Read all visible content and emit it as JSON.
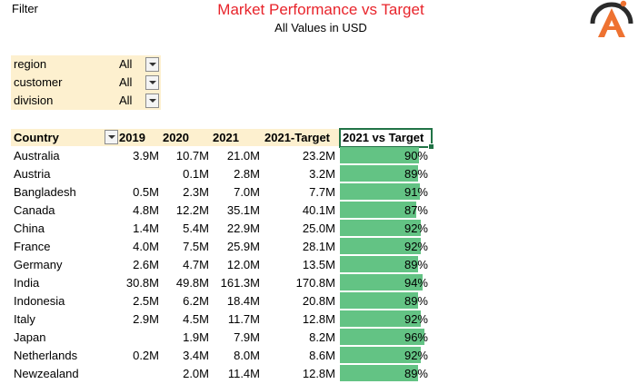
{
  "filter_label": "Filter",
  "title": "Market Performance vs Target",
  "subtitle": "All Values in USD",
  "slicers": [
    {
      "name": "region",
      "value": "All"
    },
    {
      "name": "customer",
      "value": "All"
    },
    {
      "name": "division",
      "value": "All"
    }
  ],
  "table": {
    "headers": [
      "Country",
      "2019",
      "2020",
      "2021",
      "2021-Target",
      "2021 vs Target"
    ],
    "rows": [
      {
        "country": "Australia",
        "y2019": "3.9M",
        "y2020": "10.7M",
        "y2021": "21.0M",
        "target": "23.2M",
        "pct": "90%",
        "pct_value": 0.9
      },
      {
        "country": "Austria",
        "y2019": "",
        "y2020": "0.1M",
        "y2021": "2.8M",
        "target": "3.2M",
        "pct": "89%",
        "pct_value": 0.89
      },
      {
        "country": "Bangladesh",
        "y2019": "0.5M",
        "y2020": "2.3M",
        "y2021": "7.0M",
        "target": "7.7M",
        "pct": "91%",
        "pct_value": 0.91
      },
      {
        "country": "Canada",
        "y2019": "4.8M",
        "y2020": "12.2M",
        "y2021": "35.1M",
        "target": "40.1M",
        "pct": "87%",
        "pct_value": 0.87
      },
      {
        "country": "China",
        "y2019": "1.4M",
        "y2020": "5.4M",
        "y2021": "22.9M",
        "target": "25.0M",
        "pct": "92%",
        "pct_value": 0.92
      },
      {
        "country": "France",
        "y2019": "4.0M",
        "y2020": "7.5M",
        "y2021": "25.9M",
        "target": "28.1M",
        "pct": "92%",
        "pct_value": 0.92
      },
      {
        "country": "Germany",
        "y2019": "2.6M",
        "y2020": "4.7M",
        "y2021": "12.0M",
        "target": "13.5M",
        "pct": "89%",
        "pct_value": 0.89
      },
      {
        "country": "India",
        "y2019": "30.8M",
        "y2020": "49.8M",
        "y2021": "161.3M",
        "target": "170.8M",
        "pct": "94%",
        "pct_value": 0.94
      },
      {
        "country": "Indonesia",
        "y2019": "2.5M",
        "y2020": "6.2M",
        "y2021": "18.4M",
        "target": "20.8M",
        "pct": "89%",
        "pct_value": 0.89
      },
      {
        "country": "Italy",
        "y2019": "2.9M",
        "y2020": "4.5M",
        "y2021": "11.7M",
        "target": "12.8M",
        "pct": "92%",
        "pct_value": 0.92
      },
      {
        "country": "Japan",
        "y2019": "",
        "y2020": "1.9M",
        "y2021": "7.9M",
        "target": "8.2M",
        "pct": "96%",
        "pct_value": 0.96
      },
      {
        "country": "Netherlands",
        "y2019": "0.2M",
        "y2020": "3.4M",
        "y2021": "8.0M",
        "target": "8.6M",
        "pct": "92%",
        "pct_value": 0.92
      },
      {
        "country": "Newzealand",
        "y2019": "",
        "y2020": "2.0M",
        "y2021": "11.4M",
        "target": "12.8M",
        "pct": "89%",
        "pct_value": 0.89
      }
    ]
  },
  "colors": {
    "title": "#e8242b",
    "slicer_bg": "#fdf0cf",
    "bar": "#63c384",
    "selection": "#217346",
    "logo_orange": "#ee7231",
    "logo_dark": "#2b2b2b"
  },
  "icons": {
    "logo": "logo-icon",
    "dropdown": "chevron-down-icon"
  }
}
